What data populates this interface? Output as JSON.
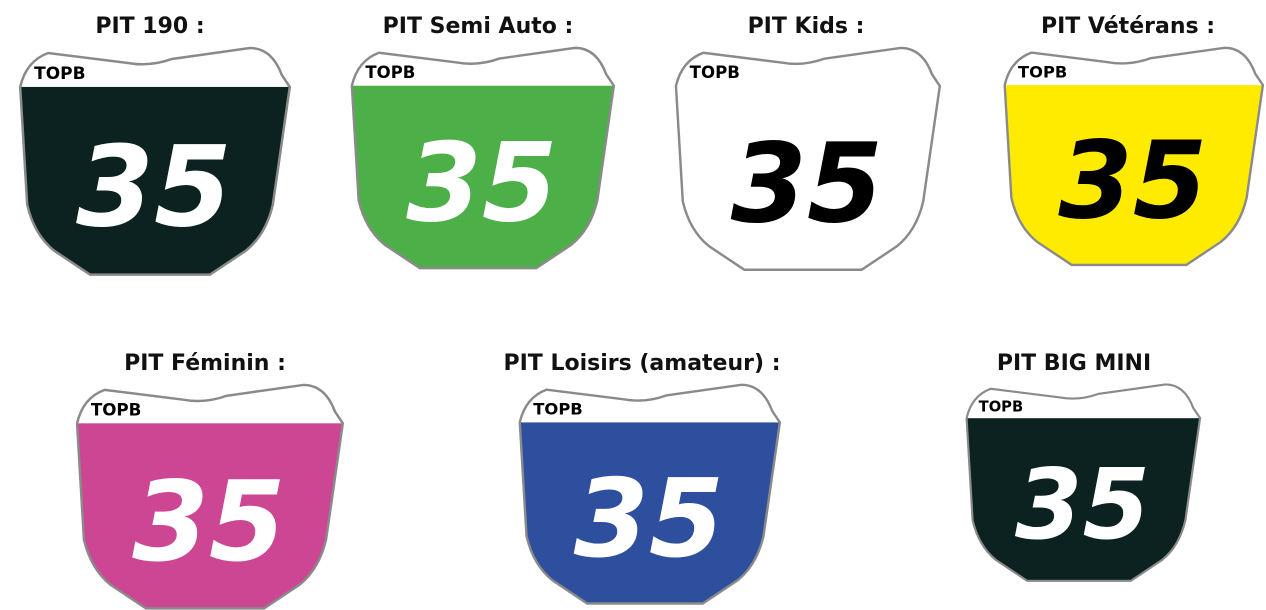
{
  "plates": [
    {
      "title": "PIT 190 :",
      "brand": "TOPB",
      "number": "35",
      "color": "#0b2220",
      "number_color": "#ffffff"
    },
    {
      "title": "PIT Semi Auto :",
      "brand": "TOPB",
      "number": "35",
      "color": "#4caf48",
      "number_color": "#ffffff"
    },
    {
      "title": "PIT Kids :",
      "brand": "TOPB",
      "number": "35",
      "color": "#ffffff",
      "number_color": "#000000"
    },
    {
      "title": "PIT Vétérans :",
      "brand": "TOPB",
      "number": "35",
      "color": "#ffeb00",
      "number_color": "#000000"
    },
    {
      "title": "PIT Féminin :",
      "brand": "TOPB",
      "number": "35",
      "color": "#cc4694",
      "number_color": "#ffffff"
    },
    {
      "title": "PIT Loisirs (amateur) :",
      "brand": "TOPB",
      "number": "35",
      "color": "#2e4f9e",
      "number_color": "#ffffff"
    },
    {
      "title": "PIT BIG MINI",
      "brand": "TOPB",
      "number": "35",
      "color": "#0b2220",
      "number_color": "#ffffff"
    }
  ]
}
